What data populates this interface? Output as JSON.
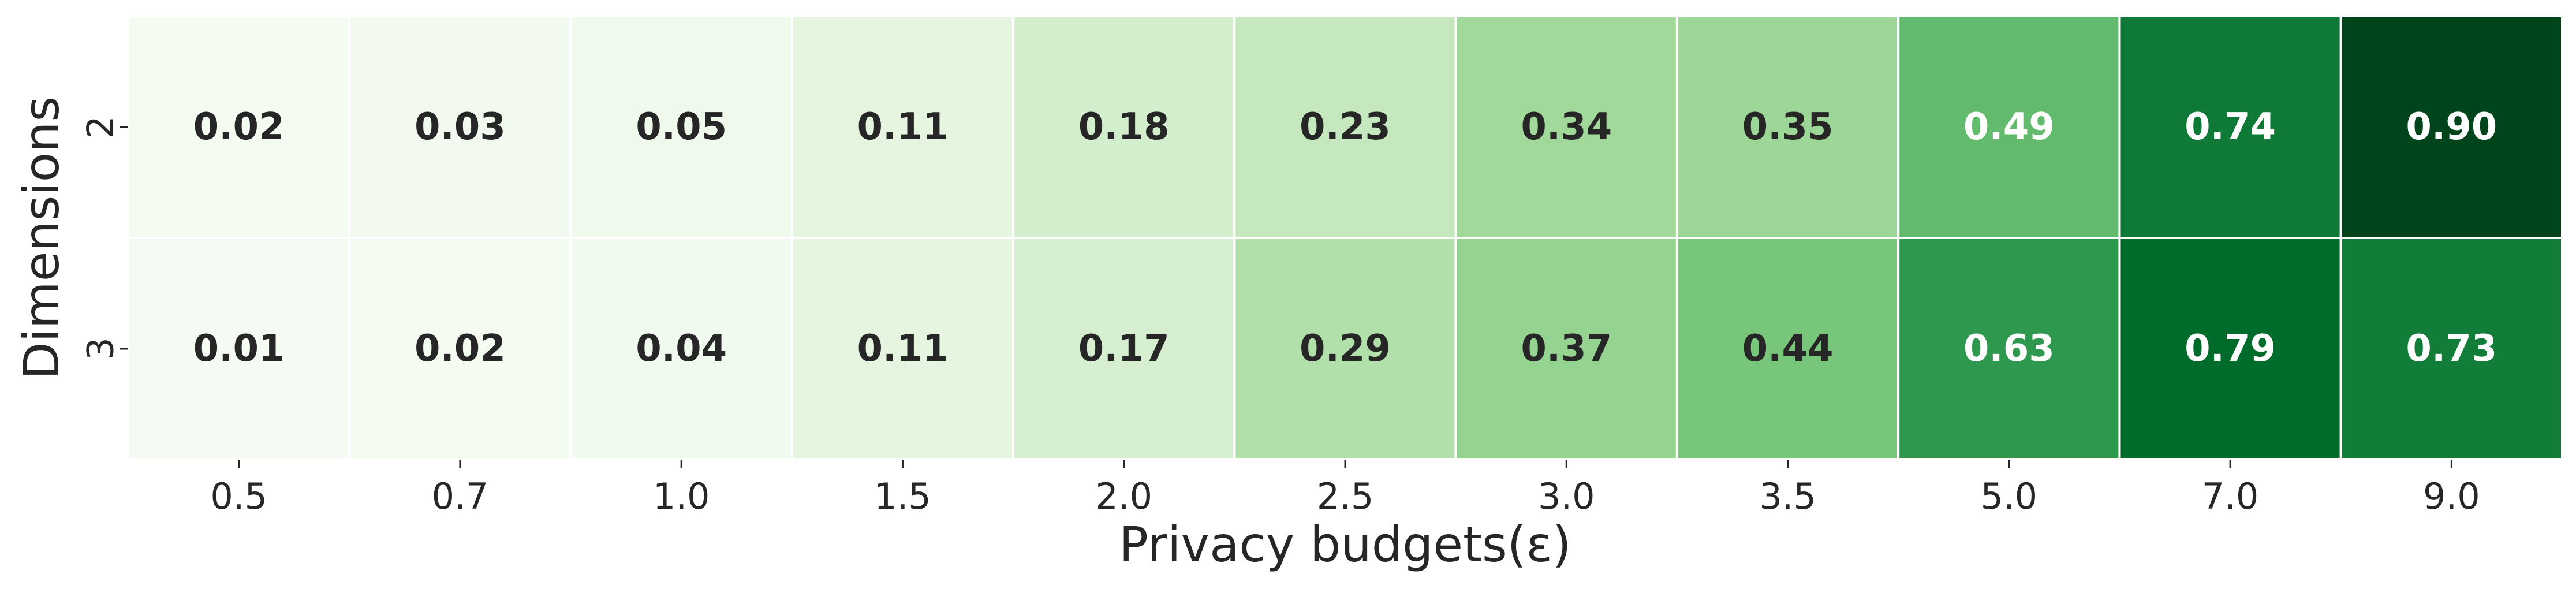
{
  "chart_data": {
    "type": "heatmap",
    "xlabel": "Privacy budgets(ε)",
    "ylabel": "Dimensions",
    "x_categories": [
      "0.5",
      "0.7",
      "1.0",
      "1.5",
      "2.0",
      "2.5",
      "3.0",
      "3.5",
      "5.0",
      "7.0",
      "9.0"
    ],
    "y_categories": [
      "2",
      "3"
    ],
    "values": [
      [
        "0.02",
        "0.03",
        "0.05",
        "0.11",
        "0.18",
        "0.23",
        "0.34",
        "0.35",
        "0.49",
        "0.74",
        "0.90"
      ],
      [
        "0.01",
        "0.02",
        "0.04",
        "0.11",
        "0.17",
        "0.29",
        "0.37",
        "0.44",
        "0.63",
        "0.79",
        "0.73"
      ]
    ],
    "colormap": "Greens",
    "color_range": [
      0.0,
      0.9
    ],
    "colors": {
      "low": "#f7fcf5",
      "high": "#00441b",
      "text_dark": "#262626",
      "text_light": "#ffffff",
      "grid": "#ffffff"
    }
  }
}
